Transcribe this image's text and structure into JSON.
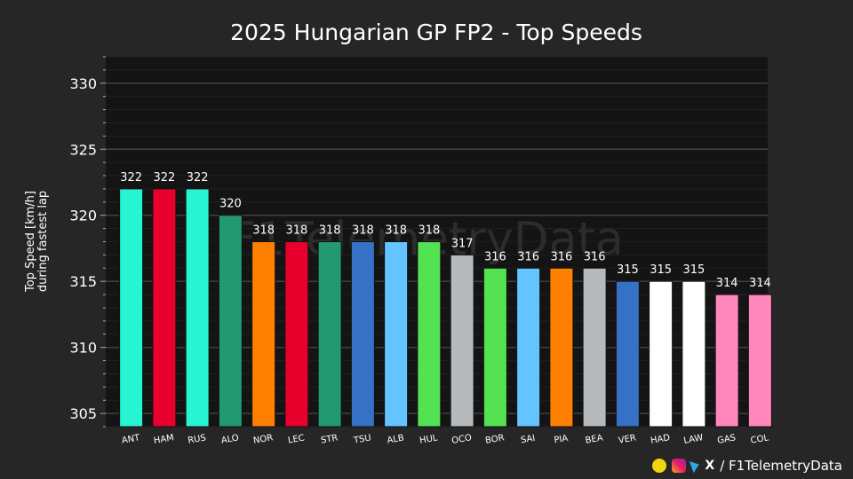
{
  "chart_data": {
    "type": "bar",
    "title": "2025 Hungarian GP FP2 - Top Speeds",
    "ylabel_line1": "Top Speed [km/h]",
    "ylabel_line2": "during fastest lap",
    "xlabel": "",
    "ylim": [
      304,
      332
    ],
    "yticks": [
      305,
      310,
      315,
      320,
      325,
      330
    ],
    "grid": true,
    "categories": [
      "ANT",
      "HAM",
      "RUS",
      "ALO",
      "NOR",
      "LEC",
      "STR",
      "TSU",
      "ALB",
      "HUL",
      "OCO",
      "BOR",
      "SAI",
      "PIA",
      "BEA",
      "VER",
      "HAD",
      "LAW",
      "GAS",
      "COL"
    ],
    "values": [
      322,
      322,
      322,
      320,
      318,
      318,
      318,
      318,
      318,
      318,
      317,
      316,
      316,
      316,
      316,
      315,
      315,
      315,
      314,
      314
    ],
    "colors": [
      "#27F4D2",
      "#E8002D",
      "#27F4D2",
      "#229971",
      "#FF8000",
      "#E8002D",
      "#229971",
      "#3671C6",
      "#64C4FF",
      "#52E252",
      "#B6BABD",
      "#52E252",
      "#64C4FF",
      "#FF8000",
      "#B6BABD",
      "#3671C6",
      "#FFFFFF",
      "#FFFFFF",
      "#FF87BC",
      "#FF87BC"
    ]
  },
  "watermark": "F1TelemetryData",
  "footer": {
    "icons": [
      "youtube-icon",
      "instagram-icon",
      "telegram-icon",
      "x-icon"
    ],
    "x_glyph": "X",
    "text": "/ F1TelemetryData"
  }
}
